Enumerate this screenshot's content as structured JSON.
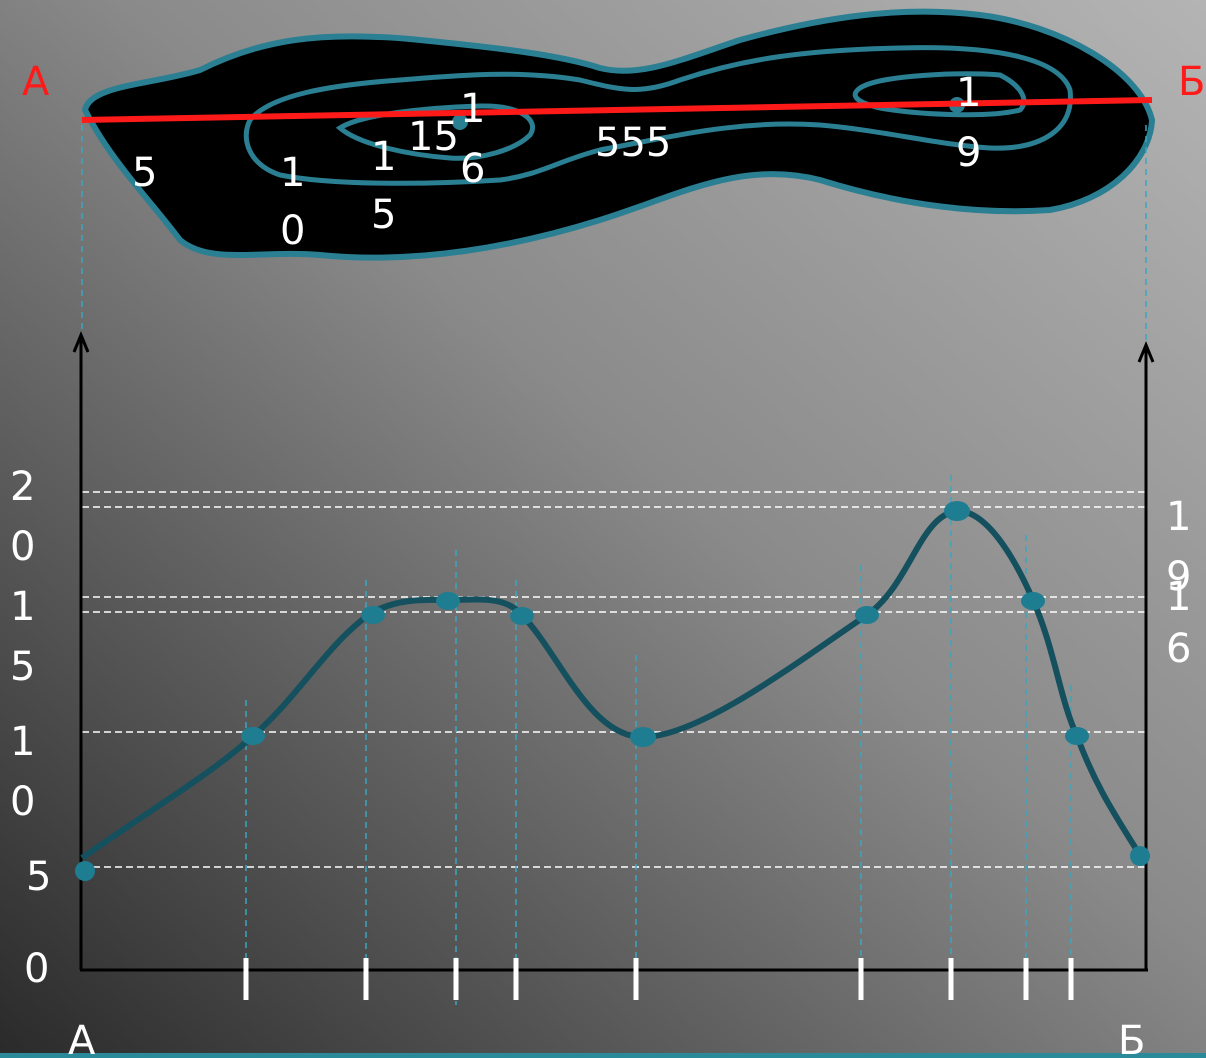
{
  "map": {
    "start_label": "А",
    "end_label": "Б",
    "contour_labels": [
      "5",
      "10",
      "15",
      "15",
      "16",
      "555",
      "19"
    ]
  },
  "profile": {
    "start_label": "А",
    "end_label": "Б",
    "y_labels": [
      "20",
      "15",
      "10",
      "5",
      "0"
    ],
    "right_labels": [
      "19",
      "16"
    ]
  }
}
